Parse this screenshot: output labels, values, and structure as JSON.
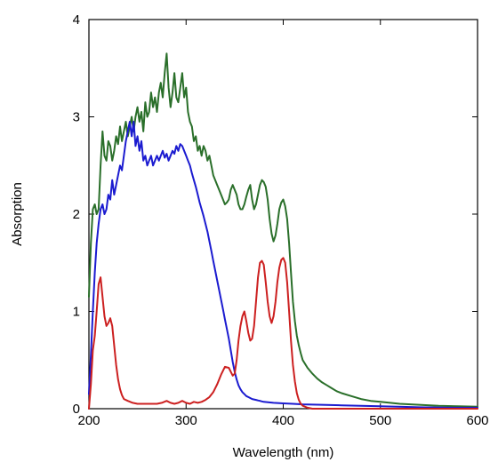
{
  "chart_data": {
    "type": "line",
    "title": "",
    "xlabel": "Wavelength (nm)",
    "ylabel": "Absorption",
    "xlim": [
      200,
      600
    ],
    "ylim": [
      0,
      4
    ],
    "x_ticks": [
      200,
      300,
      400,
      500,
      600
    ],
    "y_ticks": [
      0,
      1,
      2,
      3,
      4
    ],
    "grid": false,
    "legend": "none",
    "series": [
      {
        "color": "#2a6f2a",
        "points": [
          [
            200,
            1.15
          ],
          [
            202,
            1.7
          ],
          [
            204,
            2.05
          ],
          [
            206,
            2.1
          ],
          [
            208,
            2.0
          ],
          [
            210,
            2.05
          ],
          [
            212,
            2.5
          ],
          [
            214,
            2.85
          ],
          [
            216,
            2.6
          ],
          [
            218,
            2.55
          ],
          [
            220,
            2.75
          ],
          [
            222,
            2.7
          ],
          [
            224,
            2.55
          ],
          [
            226,
            2.65
          ],
          [
            228,
            2.8
          ],
          [
            230,
            2.72
          ],
          [
            232,
            2.9
          ],
          [
            234,
            2.75
          ],
          [
            236,
            2.85
          ],
          [
            238,
            2.95
          ],
          [
            240,
            2.8
          ],
          [
            242,
            2.9
          ],
          [
            244,
            3.0
          ],
          [
            246,
            2.85
          ],
          [
            248,
            3.0
          ],
          [
            250,
            3.1
          ],
          [
            252,
            2.95
          ],
          [
            254,
            3.05
          ],
          [
            256,
            2.85
          ],
          [
            258,
            3.15
          ],
          [
            260,
            3.0
          ],
          [
            262,
            3.05
          ],
          [
            264,
            3.25
          ],
          [
            266,
            3.1
          ],
          [
            268,
            3.2
          ],
          [
            270,
            3.05
          ],
          [
            272,
            3.25
          ],
          [
            274,
            3.35
          ],
          [
            276,
            3.2
          ],
          [
            278,
            3.45
          ],
          [
            280,
            3.65
          ],
          [
            282,
            3.3
          ],
          [
            284,
            3.1
          ],
          [
            286,
            3.25
          ],
          [
            288,
            3.45
          ],
          [
            290,
            3.2
          ],
          [
            292,
            3.15
          ],
          [
            294,
            3.3
          ],
          [
            296,
            3.45
          ],
          [
            298,
            3.2
          ],
          [
            300,
            3.3
          ],
          [
            302,
            3.05
          ],
          [
            304,
            2.95
          ],
          [
            306,
            2.9
          ],
          [
            308,
            2.75
          ],
          [
            310,
            2.8
          ],
          [
            312,
            2.65
          ],
          [
            314,
            2.7
          ],
          [
            316,
            2.6
          ],
          [
            318,
            2.7
          ],
          [
            320,
            2.65
          ],
          [
            322,
            2.55
          ],
          [
            324,
            2.6
          ],
          [
            326,
            2.5
          ],
          [
            328,
            2.4
          ],
          [
            330,
            2.35
          ],
          [
            332,
            2.3
          ],
          [
            334,
            2.25
          ],
          [
            336,
            2.2
          ],
          [
            338,
            2.15
          ],
          [
            340,
            2.1
          ],
          [
            342,
            2.12
          ],
          [
            344,
            2.15
          ],
          [
            346,
            2.25
          ],
          [
            348,
            2.3
          ],
          [
            350,
            2.25
          ],
          [
            352,
            2.2
          ],
          [
            354,
            2.1
          ],
          [
            356,
            2.05
          ],
          [
            358,
            2.05
          ],
          [
            360,
            2.1
          ],
          [
            362,
            2.18
          ],
          [
            364,
            2.25
          ],
          [
            366,
            2.3
          ],
          [
            368,
            2.15
          ],
          [
            370,
            2.05
          ],
          [
            372,
            2.1
          ],
          [
            374,
            2.2
          ],
          [
            376,
            2.3
          ],
          [
            378,
            2.35
          ],
          [
            380,
            2.33
          ],
          [
            382,
            2.28
          ],
          [
            384,
            2.15
          ],
          [
            386,
            1.95
          ],
          [
            388,
            1.8
          ],
          [
            390,
            1.72
          ],
          [
            392,
            1.78
          ],
          [
            394,
            1.9
          ],
          [
            396,
            2.05
          ],
          [
            398,
            2.12
          ],
          [
            400,
            2.15
          ],
          [
            402,
            2.08
          ],
          [
            404,
            1.95
          ],
          [
            406,
            1.7
          ],
          [
            408,
            1.4
          ],
          [
            410,
            1.1
          ],
          [
            412,
            0.9
          ],
          [
            414,
            0.75
          ],
          [
            416,
            0.65
          ],
          [
            418,
            0.57
          ],
          [
            420,
            0.5
          ],
          [
            425,
            0.42
          ],
          [
            430,
            0.36
          ],
          [
            435,
            0.31
          ],
          [
            440,
            0.27
          ],
          [
            445,
            0.24
          ],
          [
            450,
            0.21
          ],
          [
            455,
            0.18
          ],
          [
            460,
            0.16
          ],
          [
            470,
            0.13
          ],
          [
            480,
            0.1
          ],
          [
            490,
            0.08
          ],
          [
            500,
            0.07
          ],
          [
            520,
            0.05
          ],
          [
            540,
            0.04
          ],
          [
            560,
            0.03
          ],
          [
            580,
            0.025
          ],
          [
            600,
            0.02
          ]
        ]
      },
      {
        "color": "#1b1bd0",
        "points": [
          [
            200,
            0.15
          ],
          [
            202,
            0.55
          ],
          [
            204,
            1.0
          ],
          [
            206,
            1.4
          ],
          [
            208,
            1.7
          ],
          [
            210,
            1.9
          ],
          [
            212,
            2.05
          ],
          [
            214,
            2.1
          ],
          [
            216,
            2.0
          ],
          [
            218,
            2.05
          ],
          [
            220,
            2.2
          ],
          [
            222,
            2.15
          ],
          [
            224,
            2.35
          ],
          [
            226,
            2.2
          ],
          [
            228,
            2.3
          ],
          [
            230,
            2.4
          ],
          [
            232,
            2.5
          ],
          [
            234,
            2.45
          ],
          [
            236,
            2.6
          ],
          [
            238,
            2.75
          ],
          [
            240,
            2.85
          ],
          [
            242,
            2.95
          ],
          [
            244,
            2.8
          ],
          [
            246,
            2.95
          ],
          [
            248,
            2.7
          ],
          [
            250,
            2.8
          ],
          [
            252,
            2.65
          ],
          [
            254,
            2.75
          ],
          [
            256,
            2.55
          ],
          [
            258,
            2.6
          ],
          [
            260,
            2.5
          ],
          [
            262,
            2.55
          ],
          [
            264,
            2.6
          ],
          [
            266,
            2.5
          ],
          [
            268,
            2.55
          ],
          [
            270,
            2.6
          ],
          [
            272,
            2.55
          ],
          [
            274,
            2.6
          ],
          [
            276,
            2.65
          ],
          [
            278,
            2.58
          ],
          [
            280,
            2.62
          ],
          [
            282,
            2.55
          ],
          [
            284,
            2.6
          ],
          [
            286,
            2.65
          ],
          [
            288,
            2.62
          ],
          [
            290,
            2.7
          ],
          [
            292,
            2.65
          ],
          [
            294,
            2.72
          ],
          [
            296,
            2.7
          ],
          [
            298,
            2.65
          ],
          [
            300,
            2.6
          ],
          [
            302,
            2.55
          ],
          [
            304,
            2.5
          ],
          [
            306,
            2.42
          ],
          [
            308,
            2.35
          ],
          [
            310,
            2.28
          ],
          [
            312,
            2.2
          ],
          [
            314,
            2.12
          ],
          [
            316,
            2.05
          ],
          [
            318,
            1.98
          ],
          [
            320,
            1.9
          ],
          [
            322,
            1.82
          ],
          [
            324,
            1.72
          ],
          [
            326,
            1.62
          ],
          [
            328,
            1.52
          ],
          [
            330,
            1.42
          ],
          [
            332,
            1.32
          ],
          [
            334,
            1.22
          ],
          [
            336,
            1.12
          ],
          [
            338,
            1.02
          ],
          [
            340,
            0.92
          ],
          [
            342,
            0.82
          ],
          [
            344,
            0.72
          ],
          [
            346,
            0.6
          ],
          [
            348,
            0.48
          ],
          [
            350,
            0.38
          ],
          [
            352,
            0.3
          ],
          [
            354,
            0.24
          ],
          [
            356,
            0.2
          ],
          [
            358,
            0.17
          ],
          [
            360,
            0.15
          ],
          [
            362,
            0.13
          ],
          [
            364,
            0.12
          ],
          [
            366,
            0.11
          ],
          [
            368,
            0.1
          ],
          [
            370,
            0.095
          ],
          [
            372,
            0.09
          ],
          [
            374,
            0.085
          ],
          [
            376,
            0.08
          ],
          [
            378,
            0.075
          ],
          [
            380,
            0.07
          ],
          [
            390,
            0.06
          ],
          [
            400,
            0.055
          ],
          [
            410,
            0.05
          ],
          [
            420,
            0.045
          ],
          [
            440,
            0.04
          ],
          [
            460,
            0.035
          ],
          [
            480,
            0.03
          ],
          [
            500,
            0.025
          ],
          [
            540,
            0.015
          ],
          [
            580,
            0.01
          ],
          [
            600,
            0.01
          ]
        ]
      },
      {
        "color": "#cc2020",
        "points": [
          [
            200,
            0.0
          ],
          [
            202,
            0.25
          ],
          [
            204,
            0.6
          ],
          [
            206,
            0.75
          ],
          [
            208,
            1.0
          ],
          [
            210,
            1.28
          ],
          [
            212,
            1.35
          ],
          [
            214,
            1.15
          ],
          [
            216,
            0.95
          ],
          [
            218,
            0.85
          ],
          [
            220,
            0.88
          ],
          [
            222,
            0.93
          ],
          [
            224,
            0.85
          ],
          [
            226,
            0.65
          ],
          [
            228,
            0.45
          ],
          [
            230,
            0.3
          ],
          [
            232,
            0.2
          ],
          [
            234,
            0.14
          ],
          [
            236,
            0.1
          ],
          [
            240,
            0.08
          ],
          [
            245,
            0.06
          ],
          [
            250,
            0.05
          ],
          [
            255,
            0.05
          ],
          [
            260,
            0.05
          ],
          [
            265,
            0.05
          ],
          [
            270,
            0.05
          ],
          [
            275,
            0.06
          ],
          [
            280,
            0.08
          ],
          [
            284,
            0.06
          ],
          [
            288,
            0.05
          ],
          [
            292,
            0.06
          ],
          [
            296,
            0.08
          ],
          [
            300,
            0.06
          ],
          [
            304,
            0.05
          ],
          [
            308,
            0.07
          ],
          [
            312,
            0.06
          ],
          [
            316,
            0.07
          ],
          [
            320,
            0.09
          ],
          [
            324,
            0.12
          ],
          [
            328,
            0.17
          ],
          [
            332,
            0.25
          ],
          [
            336,
            0.35
          ],
          [
            340,
            0.43
          ],
          [
            344,
            0.42
          ],
          [
            346,
            0.38
          ],
          [
            348,
            0.34
          ],
          [
            350,
            0.36
          ],
          [
            352,
            0.5
          ],
          [
            354,
            0.7
          ],
          [
            356,
            0.85
          ],
          [
            358,
            0.95
          ],
          [
            360,
            1.0
          ],
          [
            362,
            0.9
          ],
          [
            364,
            0.78
          ],
          [
            366,
            0.7
          ],
          [
            368,
            0.72
          ],
          [
            370,
            0.85
          ],
          [
            372,
            1.1
          ],
          [
            374,
            1.35
          ],
          [
            376,
            1.5
          ],
          [
            378,
            1.52
          ],
          [
            380,
            1.48
          ],
          [
            382,
            1.3
          ],
          [
            384,
            1.1
          ],
          [
            386,
            0.95
          ],
          [
            388,
            0.88
          ],
          [
            390,
            0.95
          ],
          [
            392,
            1.1
          ],
          [
            394,
            1.3
          ],
          [
            396,
            1.45
          ],
          [
            398,
            1.53
          ],
          [
            400,
            1.55
          ],
          [
            402,
            1.5
          ],
          [
            404,
            1.3
          ],
          [
            406,
            1.0
          ],
          [
            408,
            0.7
          ],
          [
            410,
            0.45
          ],
          [
            412,
            0.28
          ],
          [
            414,
            0.16
          ],
          [
            416,
            0.09
          ],
          [
            418,
            0.05
          ],
          [
            420,
            0.03
          ],
          [
            425,
            0.01
          ],
          [
            430,
            0.0
          ],
          [
            440,
            0.0
          ],
          [
            460,
            0.0
          ],
          [
            500,
            0.0
          ],
          [
            550,
            0.0
          ],
          [
            600,
            0.0
          ]
        ]
      }
    ]
  }
}
